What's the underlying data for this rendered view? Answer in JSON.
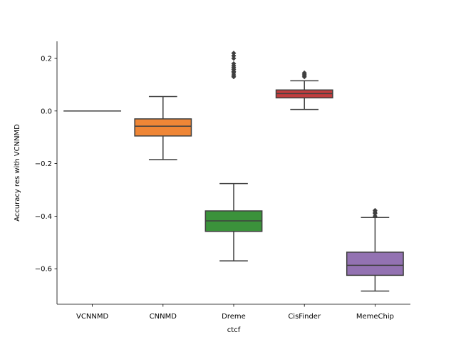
{
  "chart_data": {
    "type": "box",
    "xlabel": "ctcf",
    "ylabel": "Accuracy res with VCNNMD",
    "ylim": [
      -0.735,
      0.265
    ],
    "yticks": [
      0.2,
      0.0,
      -0.2,
      -0.4,
      -0.6
    ],
    "ytick_labels": [
      "0.2",
      "0.0",
      "−0.2",
      "−0.4",
      "−0.6"
    ],
    "categories": [
      "VCNNMD",
      "CNNMD",
      "Dreme",
      "CisFinder",
      "MemeChip"
    ],
    "boxes": [
      {
        "category": "VCNNMD",
        "color": "#3a75af",
        "whisker_low": 0.0,
        "q1": 0.0,
        "median": 0.0,
        "q3": 0.0,
        "whisker_high": 0.0,
        "outliers": []
      },
      {
        "category": "CNNMD",
        "color": "#ef8636",
        "whisker_low": -0.185,
        "q1": -0.095,
        "median": -0.058,
        "q3": -0.03,
        "whisker_high": 0.055,
        "outliers": []
      },
      {
        "category": "Dreme",
        "color": "#3b923b",
        "whisker_low": -0.57,
        "q1": -0.458,
        "median": -0.418,
        "q3": -0.38,
        "whisker_high": -0.276,
        "outliers": [
          0.13,
          0.137,
          0.145,
          0.15,
          0.158,
          0.165,
          0.172,
          0.18,
          0.2,
          0.21,
          0.22
        ]
      },
      {
        "category": "CisFinder",
        "color": "#c03d3e",
        "whisker_low": 0.006,
        "q1": 0.05,
        "median": 0.066,
        "q3": 0.08,
        "whisker_high": 0.115,
        "outliers": [
          0.13,
          0.135,
          0.14,
          0.145
        ]
      },
      {
        "category": "MemeChip",
        "color": "#9372b2",
        "whisker_low": -0.685,
        "q1": -0.625,
        "median": -0.587,
        "q3": -0.537,
        "whisker_high": -0.405,
        "outliers": [
          -0.4,
          -0.39,
          -0.385,
          -0.378
        ]
      }
    ]
  }
}
